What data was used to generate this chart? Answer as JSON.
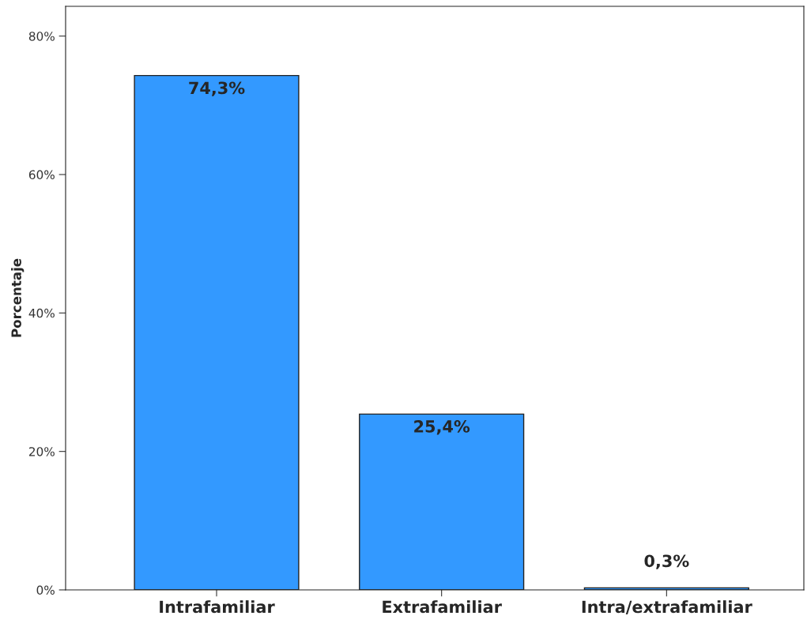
{
  "chart_data": {
    "type": "bar",
    "ylabel": "Porcentaje",
    "categories": [
      "Intrafamiliar",
      "Extrafamiliar",
      "Intra/extrafamiliar"
    ],
    "values": [
      74.3,
      25.4,
      0.3
    ],
    "value_labels": [
      "74,3%",
      "25,4%",
      "0,3%"
    ],
    "color": "#3399ff",
    "ylim": [
      0,
      84.3
    ],
    "yticks": [
      {
        "value": 0,
        "label": "0%"
      },
      {
        "value": 20,
        "label": "20%"
      },
      {
        "value": 40,
        "label": "40%"
      },
      {
        "value": 60,
        "label": "60%"
      },
      {
        "value": 80,
        "label": "80%"
      }
    ],
    "grid": false,
    "legend": false
  }
}
